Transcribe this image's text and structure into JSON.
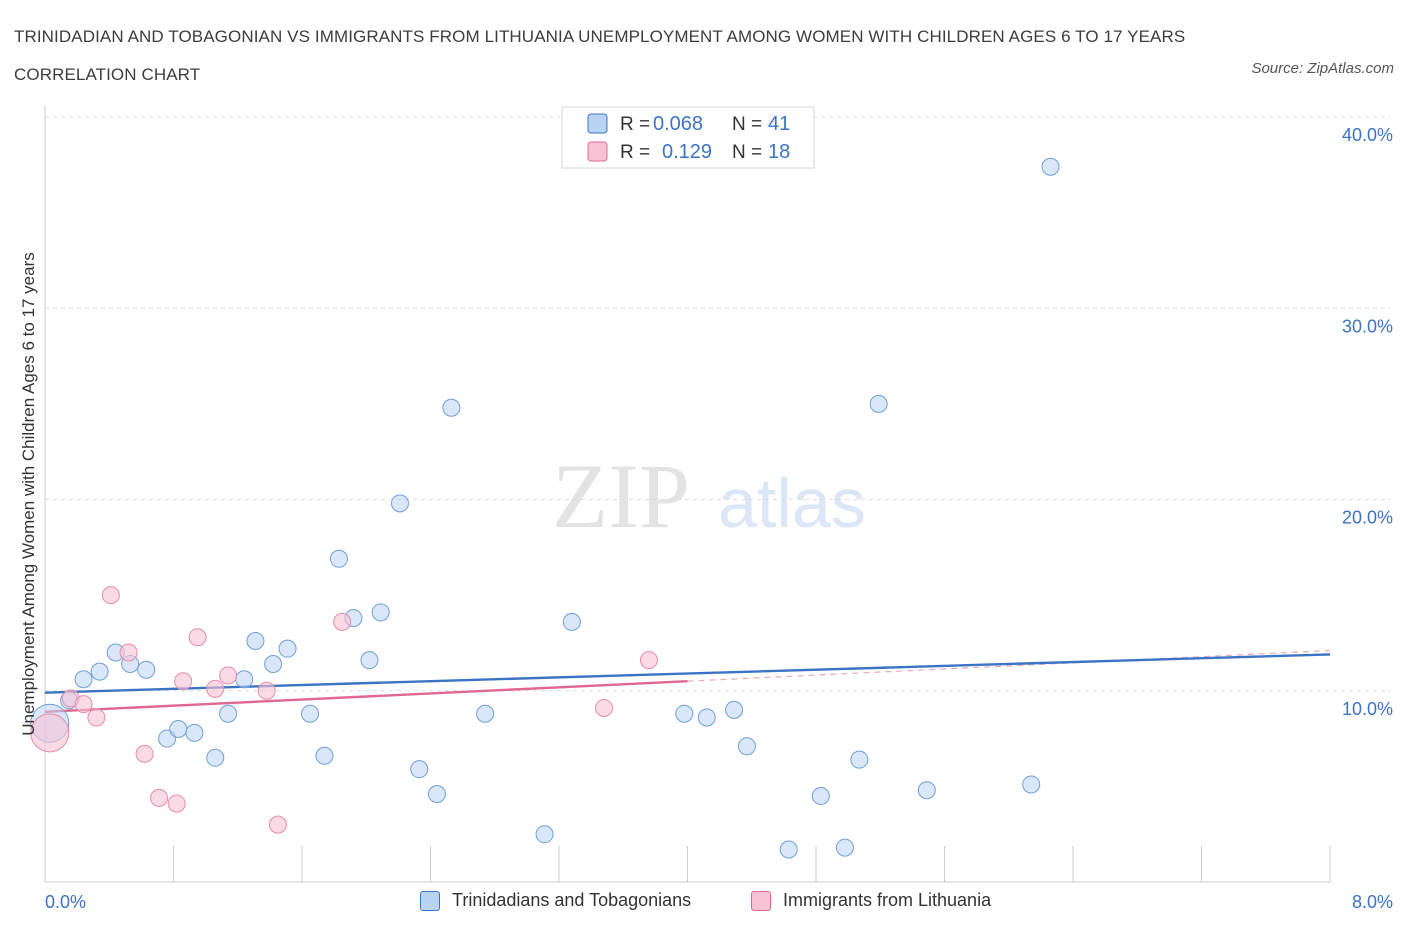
{
  "title": "TRINIDADIAN AND TOBAGONIAN VS IMMIGRANTS FROM LITHUANIA UNEMPLOYMENT AMONG WOMEN WITH CHILDREN AGES 6 TO 17 YEARS CORRELATION CHART",
  "source": "Source: ZipAtlas.com",
  "watermark": {
    "zip": "ZIP",
    "atlas": "atlas"
  },
  "colors": {
    "blue": "#3b74c4",
    "blue_fill": "#b9d3f2",
    "pink": "#e06890",
    "pink_fill": "#f7c3d4",
    "grid": "#dddddd"
  },
  "legend": {
    "r_label": "R =",
    "n_label": "N =",
    "series": [
      {
        "name": "Trinidadians and Tobagonians",
        "r": "0.068",
        "n": "41"
      },
      {
        "name": "Immigrants from Lithuania",
        "r": "0.129",
        "n": "18"
      }
    ]
  },
  "chart_data": {
    "type": "scatter",
    "title": "TRINIDADIAN AND TOBAGONIAN VS IMMIGRANTS FROM LITHUANIA UNEMPLOYMENT AMONG WOMEN WITH CHILDREN AGES 6 TO 17 YEARS CORRELATION CHART",
    "xlabel": "",
    "ylabel": "Unemployment Among Women with Children Ages 6 to 17 years",
    "xlim": [
      0,
      8
    ],
    "ylim": [
      0,
      40
    ],
    "x_tick_labels": [
      "0.0%",
      "8.0%"
    ],
    "y_ticks": [
      10,
      20,
      30,
      40
    ],
    "y_tick_labels": [
      "10.0%",
      "20.0%",
      "30.0%",
      "40.0%"
    ],
    "grid": true,
    "legend_position": "top-center",
    "series": [
      {
        "name": "Trinidadians and Tobagonians",
        "color": "#3b74c4",
        "trend": {
          "x": [
            0.0,
            8.0
          ],
          "y": [
            9.9,
            11.9
          ]
        },
        "points": [
          {
            "x": 0.03,
            "y": 8.3,
            "big": true
          },
          {
            "x": 0.15,
            "y": 9.5
          },
          {
            "x": 0.24,
            "y": 10.6
          },
          {
            "x": 0.34,
            "y": 11.0
          },
          {
            "x": 0.44,
            "y": 12.0
          },
          {
            "x": 0.53,
            "y": 11.4
          },
          {
            "x": 0.63,
            "y": 11.1
          },
          {
            "x": 0.76,
            "y": 7.5
          },
          {
            "x": 0.83,
            "y": 8.0
          },
          {
            "x": 0.93,
            "y": 7.8
          },
          {
            "x": 1.06,
            "y": 6.5
          },
          {
            "x": 1.14,
            "y": 8.8
          },
          {
            "x": 1.24,
            "y": 10.6
          },
          {
            "x": 1.31,
            "y": 12.6
          },
          {
            "x": 1.42,
            "y": 11.4
          },
          {
            "x": 1.51,
            "y": 12.2
          },
          {
            "x": 1.65,
            "y": 8.8
          },
          {
            "x": 1.74,
            "y": 6.6
          },
          {
            "x": 1.83,
            "y": 16.9
          },
          {
            "x": 1.92,
            "y": 13.8
          },
          {
            "x": 2.02,
            "y": 11.6
          },
          {
            "x": 2.09,
            "y": 14.1
          },
          {
            "x": 2.21,
            "y": 19.8
          },
          {
            "x": 2.33,
            "y": 5.9
          },
          {
            "x": 2.44,
            "y": 4.6
          },
          {
            "x": 2.53,
            "y": 24.8
          },
          {
            "x": 2.74,
            "y": 8.8
          },
          {
            "x": 3.11,
            "y": 2.5
          },
          {
            "x": 3.28,
            "y": 13.6
          },
          {
            "x": 3.98,
            "y": 8.8
          },
          {
            "x": 4.12,
            "y": 8.6
          },
          {
            "x": 4.29,
            "y": 9.0
          },
          {
            "x": 4.37,
            "y": 7.1
          },
          {
            "x": 4.63,
            "y": 1.7
          },
          {
            "x": 4.83,
            "y": 4.5
          },
          {
            "x": 4.98,
            "y": 1.8
          },
          {
            "x": 5.07,
            "y": 6.4
          },
          {
            "x": 5.19,
            "y": 25.0
          },
          {
            "x": 5.49,
            "y": 4.8
          },
          {
            "x": 6.14,
            "y": 5.1
          },
          {
            "x": 6.26,
            "y": 37.4
          }
        ]
      },
      {
        "name": "Immigrants from Lithuania",
        "color": "#e06890",
        "trend": {
          "x": [
            0.0,
            4.0
          ],
          "y": [
            8.9,
            10.5
          ]
        },
        "trend_dashed": {
          "x": [
            4.0,
            8.0
          ],
          "y": [
            10.5,
            12.1
          ]
        },
        "points": [
          {
            "x": 0.03,
            "y": 7.8,
            "big": true
          },
          {
            "x": 0.16,
            "y": 9.6
          },
          {
            "x": 0.24,
            "y": 9.3
          },
          {
            "x": 0.32,
            "y": 8.6
          },
          {
            "x": 0.41,
            "y": 15.0
          },
          {
            "x": 0.52,
            "y": 12.0
          },
          {
            "x": 0.62,
            "y": 6.7
          },
          {
            "x": 0.71,
            "y": 4.4
          },
          {
            "x": 0.82,
            "y": 4.1
          },
          {
            "x": 0.86,
            "y": 10.5
          },
          {
            "x": 0.95,
            "y": 12.8
          },
          {
            "x": 1.06,
            "y": 10.1
          },
          {
            "x": 1.14,
            "y": 10.8
          },
          {
            "x": 1.38,
            "y": 10.0
          },
          {
            "x": 1.45,
            "y": 3.0
          },
          {
            "x": 1.85,
            "y": 13.6
          },
          {
            "x": 3.48,
            "y": 9.1
          },
          {
            "x": 3.76,
            "y": 11.6
          }
        ]
      }
    ]
  }
}
